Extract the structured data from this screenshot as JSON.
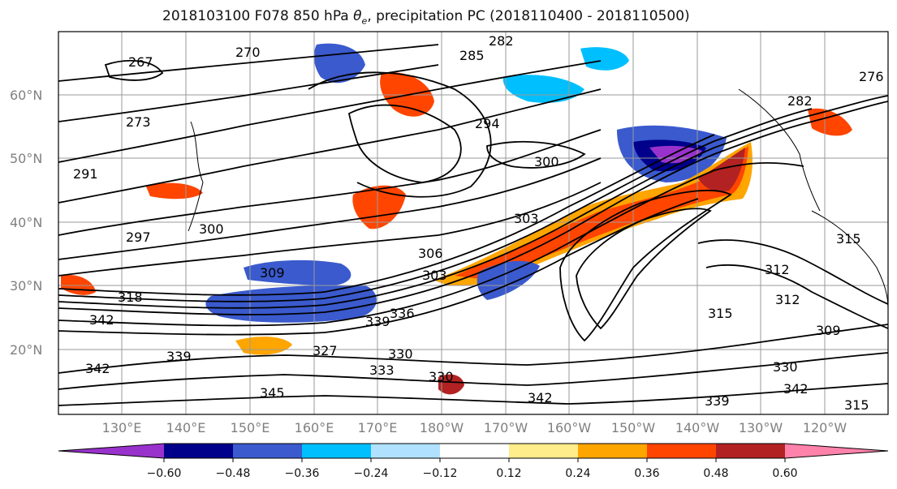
{
  "title_main": "2018103100 F078 850 hPa ",
  "title_symbol": "θ",
  "title_sub": "e",
  "title_rest": ", precipitation PC (2018110400 - 2018110500)",
  "lat_labels": [
    "60°N",
    "50°N",
    "40°N",
    "30°N",
    "20°N"
  ],
  "lon_labels": [
    "130°E",
    "140°E",
    "150°E",
    "160°E",
    "170°E",
    "180°W",
    "170°W",
    "160°W",
    "150°W",
    "140°W",
    "130°W",
    "120°W"
  ],
  "colorbar": {
    "colors": [
      "#9932cc",
      "#00008b",
      "#3a5acd",
      "#00bfff",
      "#b0e2ff",
      "#ffffff",
      "#ffec8b",
      "#ffa500",
      "#ff4500",
      "#b22222",
      "#ff82ab"
    ],
    "tick_labels": [
      "−0.60",
      "−0.48",
      "−0.36",
      "−0.24",
      "−0.12",
      "0.12",
      "0.24",
      "0.36",
      "0.48",
      "0.60"
    ]
  },
  "contour_labels": [
    "267",
    "270",
    "282",
    "285",
    "294",
    "276",
    "282",
    "273",
    "291",
    "300",
    "303",
    "297",
    "300",
    "306",
    "303",
    "309",
    "318",
    "315",
    "312",
    "312",
    "342",
    "339",
    "336",
    "327",
    "330",
    "333",
    "330",
    "339",
    "345",
    "342",
    "339",
    "342",
    "330",
    "342",
    "309",
    "315",
    "315"
  ]
}
